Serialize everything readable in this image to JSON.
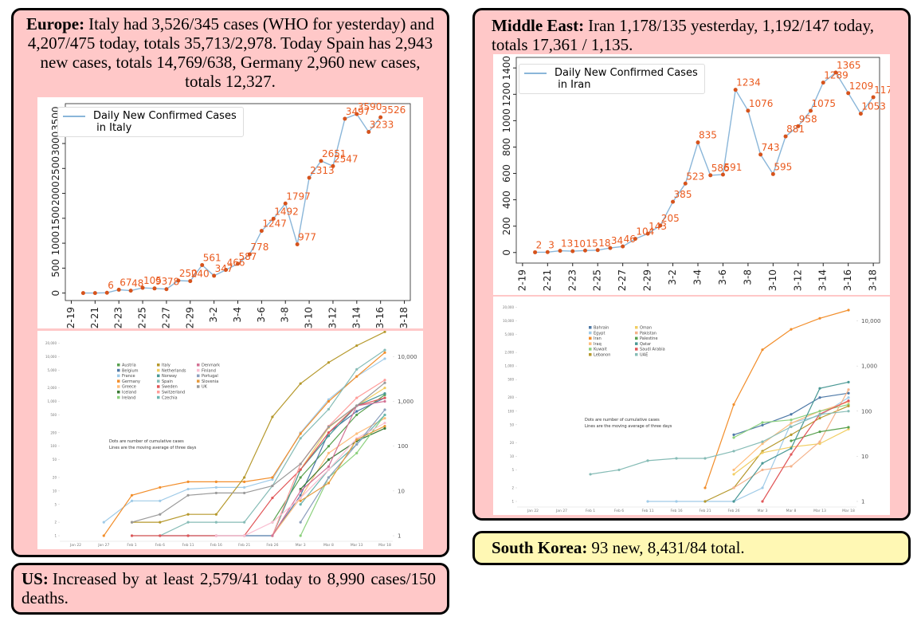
{
  "europe": {
    "label": "Europe:",
    "text": "Italy had 3,526/345 cases (WHO for yesterday) and 4,207/475 today, totals 35,713/2,978. Today Spain has 2,943 new cases, totals 14,769/638, Germany 2,960 new cases, totals 12,327."
  },
  "middle_east": {
    "label": "Middle East:",
    "text": "Iran 1,178/135 yesterday, 1,192/147 today, totals 17,361 / 1,135."
  },
  "us": {
    "label": "US:",
    "text": "Increased by at least 2,579/41 today to 8,990 cases/150 deaths."
  },
  "south_korea": {
    "label": "South Korea:",
    "text": "93 new, 8,431/84 total."
  },
  "chart_data": [
    {
      "type": "line",
      "categories": [
        "2-19",
        null,
        "2-21",
        null,
        "2-23",
        null,
        "2-25",
        null,
        "2-27",
        null,
        "2-29",
        null,
        "3-2",
        null,
        "3-4",
        null,
        "3-6",
        null,
        "3-8",
        null,
        "3-10",
        null,
        "3-12",
        null,
        "3-14",
        null,
        "3-16",
        null,
        "3-18"
      ],
      "ylim": [
        -150,
        3800
      ],
      "yticks": [
        0,
        500,
        1000,
        1500,
        2000,
        2500,
        3000,
        3500
      ],
      "marker_color": "#d6531c",
      "label_color": "#ea5a1e",
      "series": [
        {
          "name": "Daily New Confirmed Cases\n in Italy",
          "color": "#8ab6d9",
          "values": [
            null,
            0,
            0,
            6,
            67,
            48,
            105,
            93,
            78,
            250,
            240,
            561,
            347,
            466,
            587,
            778,
            1247,
            1492,
            1797,
            977,
            2313,
            2651,
            2547,
            3497,
            3590,
            3233,
            3526,
            null,
            null
          ],
          "value_labels": [
            null,
            null,
            null,
            "6",
            "67",
            "48",
            "105",
            "93",
            "78",
            "250",
            "240",
            "561",
            "347",
            "466",
            "587",
            "778",
            "1247",
            "1492",
            "1797",
            "977",
            "2313",
            "2651",
            "2547",
            "3497",
            "3590",
            "3233",
            "3526",
            null,
            null
          ]
        }
      ]
    },
    {
      "type": "line",
      "log": true,
      "categories": [
        "Jan 22",
        "Jan 27",
        "Feb 1",
        "Feb 6",
        "Feb 11",
        "Feb 16",
        "Feb 21",
        "Feb 26",
        "Mar 3",
        "Mar 8",
        "Mar 13",
        "Mar 18"
      ],
      "ylim": [
        0.85,
        25000
      ],
      "yticks": [
        1,
        2,
        5,
        10,
        20,
        50,
        100,
        200,
        500,
        {
          "value": 1000,
          "label": "1,000"
        },
        {
          "value": 2000,
          "label": "2,000"
        },
        {
          "value": 5000,
          "label": "5,000"
        },
        {
          "value": 10000,
          "label": "10,000"
        },
        {
          "value": 20000,
          "label": "20,000"
        }
      ],
      "y2lim": [
        0.85,
        25000
      ],
      "y2ticks": [
        1,
        10,
        100,
        {
          "value": 1000,
          "label": "1,000"
        },
        {
          "value": 10000,
          "label": "10,000"
        }
      ],
      "annotations": [
        "Dots are number of cumulative cases",
        "Lines are the moving average of three days"
      ],
      "series": [
        {
          "name": "Austria",
          "color": "#59a14f",
          "values": [
            null,
            null,
            null,
            null,
            null,
            null,
            null,
            2,
            20,
            100,
            500,
            1400
          ]
        },
        {
          "name": "Belgium",
          "color": "#4e79a7",
          "values": [
            null,
            null,
            null,
            1,
            1,
            1,
            1,
            1,
            8,
            200,
            600,
            1200
          ]
        },
        {
          "name": "France",
          "color": "#a0cbe8",
          "values": [
            null,
            2,
            6,
            6,
            11,
            12,
            12,
            18,
            200,
            1100,
            3600,
            9000
          ]
        },
        {
          "name": "Germany",
          "color": "#f28e2b",
          "values": [
            null,
            1,
            8,
            12,
            16,
            16,
            16,
            20,
            190,
            1000,
            3600,
            12300
          ]
        },
        {
          "name": "Greece",
          "color": "#ffbe7d",
          "values": [
            null,
            null,
            null,
            null,
            null,
            null,
            null,
            1,
            7,
            70,
            190,
            420
          ]
        },
        {
          "name": "Iceland",
          "color": "#3b7a34",
          "values": [
            null,
            null,
            null,
            null,
            null,
            null,
            null,
            null,
            11,
            50,
            130,
            250
          ]
        },
        {
          "name": "Ireland",
          "color": "#8cd17d",
          "values": [
            null,
            null,
            null,
            null,
            null,
            null,
            null,
            null,
            1,
            20,
            70,
            500
          ]
        },
        {
          "name": "Italy",
          "color": "#b6992d",
          "values": [
            null,
            null,
            2,
            2,
            3,
            3,
            20,
            450,
            2500,
            7400,
            17600,
            35700
          ]
        },
        {
          "name": "Netherlands",
          "color": "#f1ce63",
          "values": [
            null,
            null,
            null,
            null,
            null,
            null,
            null,
            1,
            30,
            260,
            800,
            2000
          ]
        },
        {
          "name": "Norway",
          "color": "#499894",
          "values": [
            null,
            null,
            null,
            null,
            null,
            null,
            null,
            1,
            30,
            170,
            800,
            1500
          ]
        },
        {
          "name": "Spain",
          "color": "#86bcb6",
          "values": [
            null,
            null,
            1,
            1,
            2,
            2,
            2,
            13,
            150,
            670,
            5200,
            14000
          ]
        },
        {
          "name": "Sweden",
          "color": "#e15759",
          "values": [
            null,
            null,
            1,
            1,
            1,
            1,
            1,
            7,
            30,
            200,
            800,
            1200
          ]
        },
        {
          "name": "Switzerland",
          "color": "#ff9d9a",
          "values": [
            null,
            null,
            null,
            null,
            null,
            null,
            null,
            1,
            40,
            280,
            1200,
            3000
          ]
        },
        {
          "name": "Czechia",
          "color": "#6cb5b0",
          "values": [
            null,
            null,
            null,
            null,
            null,
            null,
            null,
            null,
            5,
            30,
            110,
            500
          ]
        },
        {
          "name": "Denmark",
          "color": "#d37295",
          "values": [
            null,
            null,
            null,
            null,
            null,
            null,
            null,
            1,
            10,
            35,
            800,
            1000
          ]
        },
        {
          "name": "Finland",
          "color": "#fabfd2",
          "values": [
            null,
            null,
            null,
            null,
            null,
            1,
            1,
            2,
            7,
            30,
            150,
            330
          ]
        },
        {
          "name": "Portugal",
          "color": "#8c9fbd",
          "values": [
            null,
            null,
            null,
            null,
            null,
            null,
            null,
            null,
            2,
            20,
            110,
            650
          ]
        },
        {
          "name": "Slovenia",
          "color": "#e69a3c",
          "values": [
            null,
            null,
            null,
            null,
            null,
            null,
            null,
            null,
            6,
            15,
            140,
            280
          ]
        },
        {
          "name": "UK",
          "color": "#9a9a9a",
          "values": [
            null,
            null,
            2,
            3,
            8,
            9,
            9,
            13,
            40,
            270,
            800,
            2600
          ]
        }
      ]
    },
    {
      "type": "line",
      "categories": [
        "2-19",
        null,
        "2-21",
        null,
        "2-23",
        null,
        "2-25",
        null,
        "2-27",
        null,
        "2-29",
        null,
        "3-2",
        null,
        "3-4",
        null,
        "3-6",
        null,
        "3-8",
        null,
        "3-10",
        null,
        "3-12",
        null,
        "3-14",
        null,
        "3-16",
        null,
        "3-18"
      ],
      "ylim": [
        -80,
        1480
      ],
      "yticks": [
        0,
        200,
        400,
        600,
        800,
        1000,
        1200,
        1400
      ],
      "marker_color": "#d6531c",
      "label_color": "#ea5a1e",
      "series": [
        {
          "name": "Daily New Confirmed Cases\n in Iran",
          "color": "#8ab6d9",
          "values": [
            null,
            2,
            3,
            13,
            10,
            15,
            18,
            34,
            46,
            104,
            143,
            205,
            385,
            523,
            835,
            586,
            591,
            1234,
            1076,
            743,
            595,
            881,
            958,
            1075,
            1289,
            1365,
            1209,
            1053,
            1178
          ]
        }
      ]
    },
    {
      "type": "line",
      "log": true,
      "categories": [
        "Jan 22",
        "Jan 27",
        "Feb 1",
        "Feb 6",
        "Feb 11",
        "Feb 16",
        "Feb 21",
        "Feb 26",
        "Mar 3",
        "Mar 8",
        "Mar 13",
        "Mar 18"
      ],
      "ylim": [
        0.85,
        25000
      ],
      "yticks": [
        1,
        2,
        5,
        10,
        20,
        50,
        100,
        200,
        500,
        {
          "value": 1000,
          "label": "1,000"
        },
        {
          "value": 2000,
          "label": "2,000"
        },
        {
          "value": 5000,
          "label": "5,000"
        },
        {
          "value": 10000,
          "label": "10,000"
        },
        {
          "value": 20000,
          "label": "20,000"
        }
      ],
      "y2lim": [
        0.85,
        25000
      ],
      "y2ticks": [
        1,
        10,
        100,
        {
          "value": 1000,
          "label": "1,000"
        },
        {
          "value": 10000,
          "label": "10,000"
        }
      ],
      "annotations": [
        "Dots are number of cumulative cases",
        "Lines are the moving average of three days"
      ],
      "series": [
        {
          "name": "Bahrain",
          "color": "#4e79a7",
          "values": [
            null,
            null,
            null,
            null,
            null,
            null,
            null,
            30,
            49,
            85,
            200,
            250
          ]
        },
        {
          "name": "Egypt",
          "color": "#a0cbe8",
          "values": [
            null,
            null,
            null,
            null,
            1,
            1,
            1,
            1,
            2,
            55,
            80,
            200
          ]
        },
        {
          "name": "Iran",
          "color": "#f28e2b",
          "values": [
            null,
            null,
            null,
            null,
            null,
            null,
            2,
            140,
            2300,
            6500,
            11400,
            17361
          ]
        },
        {
          "name": "Iraq",
          "color": "#ffbe7d",
          "values": [
            null,
            null,
            null,
            null,
            null,
            null,
            null,
            5,
            19,
            54,
            100,
            160
          ]
        },
        {
          "name": "Kuwait",
          "color": "#8cd17d",
          "values": [
            null,
            null,
            null,
            null,
            null,
            null,
            null,
            26,
            56,
            64,
            100,
            140
          ]
        },
        {
          "name": "Lebanon",
          "color": "#b6992d",
          "values": [
            null,
            null,
            null,
            null,
            null,
            null,
            1,
            2,
            13,
            30,
            70,
            130
          ]
        },
        {
          "name": "Oman",
          "color": "#f1ce63",
          "values": [
            null,
            null,
            null,
            null,
            null,
            null,
            null,
            4,
            12,
            16,
            19,
            40
          ]
        },
        {
          "name": "Pakistan",
          "color": "#f4b28b",
          "values": [
            null,
            null,
            null,
            null,
            null,
            null,
            null,
            2,
            5,
            6,
            21,
            300
          ]
        },
        {
          "name": "Palestine",
          "color": "#59a14f",
          "values": [
            null,
            null,
            null,
            null,
            null,
            null,
            null,
            null,
            null,
            22,
            35,
            44
          ]
        },
        {
          "name": "Qatar",
          "color": "#499894",
          "values": [
            null,
            null,
            null,
            null,
            null,
            null,
            null,
            1,
            7,
            15,
            320,
            440
          ]
        },
        {
          "name": "Saudi Arabia",
          "color": "#e15759",
          "values": [
            null,
            null,
            null,
            null,
            null,
            null,
            null,
            null,
            1,
            11,
            86,
            170
          ]
        },
        {
          "name": "UAE",
          "color": "#86bcb6",
          "values": [
            null,
            null,
            4,
            5,
            8,
            9,
            9,
            13,
            21,
            45,
            85,
            100
          ]
        }
      ]
    }
  ]
}
